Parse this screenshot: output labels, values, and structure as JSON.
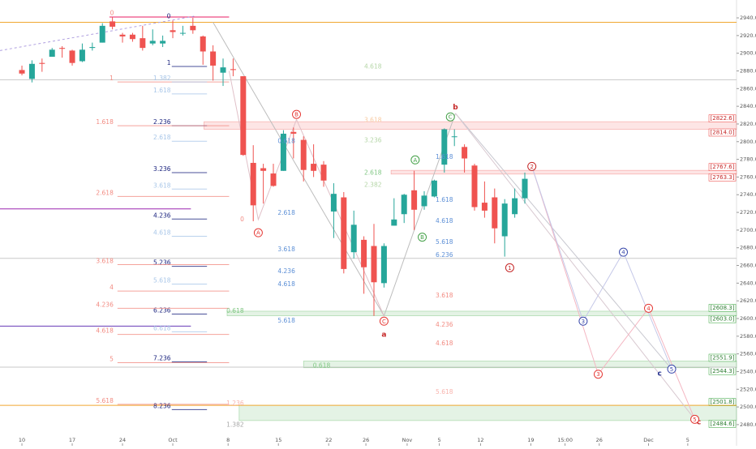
{
  "chart_data": {
    "type": "candlestick",
    "up_color": "#26a69a",
    "down_color": "#ef5350",
    "open": [
      2881,
      2871,
      2889,
      2896,
      2906,
      2903,
      2891,
      2906,
      2912,
      2936,
      2921,
      2921,
      2917,
      2911,
      2911,
      2926,
      2923,
      2931,
      2919,
      2902,
      2878,
      2882,
      2874,
      2776,
      2770,
      2764,
      2767,
      2811,
      2802,
      2775,
      2774,
      2721,
      2737,
      2675,
      2689,
      2682,
      2640,
      2705,
      2718,
      2745,
      2727,
      2738,
      2774,
      2806,
      2794,
      2773,
      2731,
      2737,
      2693,
      2718,
      2736
    ],
    "high": [
      2886,
      2892,
      2894,
      2906,
      2908,
      2904,
      2911,
      2912,
      2934,
      2941,
      2923,
      2923,
      2931,
      2927,
      2920,
      2937,
      2931,
      2940,
      2920,
      2909,
      2894,
      2894,
      2874,
      2796,
      2775,
      2775,
      2813,
      2816,
      2806,
      2797,
      2778,
      2753,
      2743,
      2722,
      2693,
      2707,
      2685,
      2736,
      2741,
      2767,
      2744,
      2757,
      2815,
      2814,
      2797,
      2775,
      2755,
      2747,
      2735,
      2747,
      2765
    ],
    "low": [
      2875,
      2867,
      2879,
      2896,
      2895,
      2886,
      2890,
      2903,
      2912,
      2927,
      2912,
      2913,
      2903,
      2909,
      2907,
      2917,
      2920,
      2922,
      2887,
      2869,
      2863,
      2874,
      2784,
      2710,
      2730,
      2749,
      2767,
      2781,
      2755,
      2760,
      2749,
      2691,
      2651,
      2668,
      2628,
      2603,
      2635,
      2705,
      2708,
      2700,
      2723,
      2737,
      2765,
      2795,
      2765,
      2722,
      2714,
      2685,
      2670,
      2714,
      2730
    ],
    "close": [
      2877,
      2888,
      2888,
      2904,
      2905,
      2889,
      2904,
      2907,
      2931,
      2930,
      2919,
      2916,
      2906,
      2914,
      2914,
      2924,
      2923,
      2926,
      2902,
      2886,
      2884,
      2881,
      2785,
      2728,
      2767,
      2750,
      2809,
      2809,
      2768,
      2767,
      2756,
      2741,
      2656,
      2706,
      2658,
      2641,
      2682,
      2712,
      2740,
      2723,
      2739,
      2756,
      2814,
      2806,
      2781,
      2726,
      2722,
      2702,
      2730,
      2736,
      2758
    ],
    "xlim": [
      -2.18,
      71.05
    ],
    "xticks": [
      {
        "value": 0,
        "label": "10"
      },
      {
        "value": 5,
        "label": "17"
      },
      {
        "value": 10,
        "label": "24"
      },
      {
        "value": 15,
        "label": "Oct"
      },
      {
        "value": 20.5,
        "label": "8"
      },
      {
        "value": 25.5,
        "label": "15"
      },
      {
        "value": 30.5,
        "label": "22"
      },
      {
        "value": 34.2,
        "label": "26"
      },
      {
        "value": 38.3,
        "label": "Nov"
      },
      {
        "value": 41.5,
        "label": "5"
      },
      {
        "value": 45.6,
        "label": "12"
      },
      {
        "value": 50.6,
        "label": "19"
      },
      {
        "value": 54,
        "label": "15:00"
      },
      {
        "value": 57.4,
        "label": "26"
      },
      {
        "value": 62.3,
        "label": "Dec"
      },
      {
        "value": 66.2,
        "label": "5"
      }
    ],
    "ylim": [
      2456.1,
      2960.2
    ],
    "yticks": [
      {
        "value": 2480,
        "label": "2480.0"
      },
      {
        "value": 2500,
        "label": "2500.0"
      },
      {
        "value": 2520,
        "label": "2520.0"
      },
      {
        "value": 2540,
        "label": "2540.0"
      },
      {
        "value": 2560,
        "label": "2560.0"
      },
      {
        "value": 2580,
        "label": "2580.0"
      },
      {
        "value": 2600,
        "label": "2600.0"
      },
      {
        "value": 2620,
        "label": "2620.0"
      },
      {
        "value": 2640,
        "label": "2640.0"
      },
      {
        "value": 2660,
        "label": "2660.0"
      },
      {
        "value": 2680,
        "label": "2680.0"
      },
      {
        "value": 2700,
        "label": "2700.0"
      },
      {
        "value": 2720,
        "label": "2720.0"
      },
      {
        "value": 2740,
        "label": "2740.0"
      },
      {
        "value": 2760,
        "label": "2760.0"
      },
      {
        "value": 2780,
        "label": "2780.0"
      },
      {
        "value": 2800,
        "label": "2800.0"
      },
      {
        "value": 2820,
        "label": "2820.0"
      },
      {
        "value": 2840,
        "label": "2840.0"
      },
      {
        "value": 2860,
        "label": "2860.0"
      },
      {
        "value": 2880,
        "label": "2880.0"
      },
      {
        "value": 2900,
        "label": "2900.0"
      },
      {
        "value": 2920,
        "label": "2920.0"
      },
      {
        "value": 2940,
        "label": "2940.0"
      }
    ],
    "zones": [
      {
        "x0": 18.1,
        "color": "#ef5350",
        "top": {
          "value": 2822.6,
          "label": "[2822.6]"
        },
        "bottom": {
          "value": 2814.0,
          "label": "[2814.0]"
        }
      },
      {
        "x0": 36.7,
        "color": "#ef5350",
        "top": {
          "value": 2767.6,
          "label": "[2767.6]"
        },
        "bottom": {
          "value": 2763.3,
          "label": "[2763.3]"
        }
      },
      {
        "x0": 20.4,
        "color": "#4caf50",
        "top": {
          "value": 2608.3,
          "label": "[2608.3]"
        },
        "bottom": {
          "value": 2603.0,
          "label": "[2603.0]"
        }
      },
      {
        "x0": 28,
        "color": "#4caf50",
        "top": {
          "value": 2551.9,
          "label": "[2551.9]"
        },
        "bottom": {
          "value": 2544.3,
          "label": "[2544.3]"
        }
      },
      {
        "x0": 21.6,
        "color": "#4caf50",
        "top": {
          "value": 2501.8,
          "label": "[2501.8]"
        },
        "bottom": {
          "value": 2484.6,
          "label": "[2484.6]"
        }
      }
    ],
    "levels": [
      {
        "price": 2935,
        "color": "#f0a830"
      },
      {
        "price": 2870,
        "color": "#c8c8c8"
      },
      {
        "price": 2668,
        "color": "#c8c8c8"
      },
      {
        "price": 2545,
        "color": "#c8c8c8"
      },
      {
        "price": 2501.8,
        "color": "#f0a830"
      },
      {
        "price": 2724,
        "x0": -2.18,
        "x1": 16.8,
        "color": "#9c27b0"
      },
      {
        "price": 2591.4,
        "x0": -2.18,
        "x1": 16.8,
        "color": "#673ab7"
      },
      {
        "price": 2941,
        "x0": 8.7,
        "x1": 20.6,
        "color": "#e91e63"
      }
    ],
    "ladders": [
      {
        "color": "#1a237e",
        "x0": 14.9,
        "x1": 18.4,
        "text_x": 14.8,
        "levels": [
          {
            "label": "1",
            "price": 2885
          },
          {
            "label": "2.236",
            "price": 2818
          },
          {
            "label": "3.236",
            "price": 2765
          },
          {
            "label": "4.236",
            "price": 2712.5
          },
          {
            "label": "5.236",
            "price": 2659
          },
          {
            "label": "6.236",
            "price": 2605
          },
          {
            "label": "7.236",
            "price": 2551
          },
          {
            "label": "8.236",
            "price": 2497
          }
        ]
      },
      {
        "color": "#f28b82",
        "x0": 9.5,
        "x1": 20.6,
        "text_x": 9.1,
        "levels": [
          {
            "label": "1",
            "price": 2867.5
          },
          {
            "label": "1.618",
            "price": 2818
          },
          {
            "label": "2.618",
            "price": 2738
          },
          {
            "label": "3.618",
            "price": 2661
          },
          {
            "label": "4",
            "price": 2631
          },
          {
            "label": "4.236",
            "price": 2611.6
          },
          {
            "label": "4.618",
            "price": 2582
          },
          {
            "label": "5",
            "price": 2550
          },
          {
            "label": "5.618",
            "price": 2503
          }
        ]
      },
      {
        "color": "#a8c6e8",
        "x0": 14.9,
        "x1": 18.4,
        "text_x": 14.8,
        "levels": [
          {
            "label": "1.382",
            "price": 2867.5
          },
          {
            "label": "1.618",
            "price": 2854
          },
          {
            "label": "2.618",
            "price": 2800.5
          },
          {
            "label": "3.618",
            "price": 2746.4
          },
          {
            "label": "4.618",
            "price": 2693
          },
          {
            "label": "5.618",
            "price": 2639
          },
          {
            "label": "6.618",
            "price": 2585
          }
        ]
      }
    ],
    "lines": [
      {
        "color": "#b0a0e0",
        "dash": true,
        "points": [
          [
            -2.18,
            2903
          ],
          [
            17.2,
            2942
          ]
        ]
      },
      {
        "color": "#bdbdbd",
        "points": [
          [
            19,
            2935
          ],
          [
            36,
            2603
          ],
          [
            43.1,
            2832
          ]
        ]
      },
      {
        "color": "#e0c0c8",
        "points": [
          [
            20.6,
            2880
          ],
          [
            23.5,
            2712
          ],
          [
            27.3,
            2825
          ],
          [
            36,
            2603
          ]
        ]
      },
      {
        "color": "#c8c8d0",
        "points": [
          [
            43.1,
            2832
          ],
          [
            64.6,
            2542.8
          ]
        ]
      },
      {
        "color": "#d8c8d0",
        "points": [
          [
            43.1,
            2832
          ],
          [
            66.9,
            2486
          ]
        ]
      },
      {
        "color": "#f4b6c2",
        "points": [
          [
            50.7,
            2772
          ],
          [
            57.3,
            2537
          ],
          [
            62.3,
            2611.6
          ],
          [
            66.9,
            2486
          ]
        ]
      },
      {
        "color": "#c5c8e8",
        "points": [
          [
            50.7,
            2772
          ],
          [
            55.8,
            2597
          ],
          [
            59.8,
            2675
          ],
          [
            64.6,
            2542.8
          ]
        ]
      }
    ],
    "annotations": [
      {
        "text": "0",
        "x": 8.95,
        "y": 2945.5,
        "color": "#f28b82"
      },
      {
        "text": "0",
        "x": 14.6,
        "y": 2942,
        "color": "#1a237e"
      },
      {
        "text": "0",
        "x": 21.9,
        "y": 2712.5,
        "color": "#f28b82"
      },
      {
        "text": "4.618",
        "x": 34.9,
        "y": 2885,
        "color": "#b5d6a7"
      },
      {
        "text": "3.618",
        "x": 34.9,
        "y": 2824.4,
        "color": "#f8c9a0"
      },
      {
        "text": "3.236",
        "x": 34.9,
        "y": 2801.5,
        "color": "#b5d6a7"
      },
      {
        "text": "2.618",
        "x": 34.9,
        "y": 2764.8,
        "color": "#81c784"
      },
      {
        "text": "2.382",
        "x": 34.9,
        "y": 2751,
        "color": "#b5d6a7"
      },
      {
        "text": "1.618",
        "x": 42,
        "y": 2783,
        "color": "#5c8fd6"
      },
      {
        "text": "1.618",
        "x": 42,
        "y": 2734.5,
        "color": "#5c8fd6"
      },
      {
        "text": "4.618",
        "x": 42,
        "y": 2710.6,
        "color": "#5c8fd6"
      },
      {
        "text": "5.618",
        "x": 42,
        "y": 2686.8,
        "color": "#5c8fd6"
      },
      {
        "text": "6.236",
        "x": 42,
        "y": 2672,
        "color": "#5c8fd6"
      },
      {
        "text": "3.618",
        "x": 42,
        "y": 2626,
        "color": "#f28b82"
      },
      {
        "text": "4.236",
        "x": 42,
        "y": 2593,
        "color": "#f28b82"
      },
      {
        "text": "4.618",
        "x": 42,
        "y": 2572,
        "color": "#f28b82"
      },
      {
        "text": "5.618",
        "x": 42,
        "y": 2517,
        "color": "#f8b4ae"
      },
      {
        "text": "0.618",
        "x": 26.3,
        "y": 2800.5,
        "color": "#5c8fd6"
      },
      {
        "text": "2.618",
        "x": 26.3,
        "y": 2719.8,
        "color": "#5c8fd6"
      },
      {
        "text": "3.618",
        "x": 26.3,
        "y": 2678.5,
        "color": "#5c8fd6"
      },
      {
        "text": "4.236",
        "x": 26.3,
        "y": 2653.8,
        "color": "#5c8fd6"
      },
      {
        "text": "4.618",
        "x": 26.3,
        "y": 2639,
        "color": "#5c8fd6"
      },
      {
        "text": "5.618",
        "x": 26.3,
        "y": 2597.8,
        "color": "#5c8fd6"
      },
      {
        "text": "0.618",
        "x": 21.2,
        "y": 2608.8,
        "color": "#81c784"
      },
      {
        "text": "0.618",
        "x": 29.8,
        "y": 2547,
        "color": "#81c784"
      },
      {
        "text": "1.236",
        "x": 21.2,
        "y": 2504,
        "color": "#f8b4ae"
      },
      {
        "text": "1.382",
        "x": 21.2,
        "y": 2480,
        "color": "#a8a8a8"
      },
      {
        "text": "A",
        "x": 23.5,
        "y": 2697,
        "color": "#e53935",
        "circle": true
      },
      {
        "text": "B",
        "x": 27.3,
        "y": 2830.8,
        "color": "#e53935",
        "circle": true
      },
      {
        "text": "C",
        "x": 36,
        "y": 2597,
        "color": "#e53935",
        "circle": true
      },
      {
        "text": "a",
        "x": 36,
        "y": 2582,
        "color": "#c62828",
        "bold": true
      },
      {
        "text": "b",
        "x": 43.1,
        "y": 2839,
        "color": "#c62828",
        "bold": true
      },
      {
        "text": "c",
        "x": 67.3,
        "y": 2483,
        "color": "#c62828",
        "bold": true
      },
      {
        "text": "A",
        "x": 39.1,
        "y": 2779.4,
        "color": "#43a047",
        "circle": true
      },
      {
        "text": "B",
        "x": 39.8,
        "y": 2692,
        "color": "#43a047",
        "circle": true
      },
      {
        "text": "C",
        "x": 42.6,
        "y": 2828,
        "color": "#43a047",
        "circle": true
      },
      {
        "text": "1",
        "x": 48.5,
        "y": 2657.4,
        "color": "#c62828",
        "circle": true
      },
      {
        "text": "2",
        "x": 50.7,
        "y": 2772,
        "color": "#c62828",
        "circle": true
      },
      {
        "text": "3",
        "x": 57.3,
        "y": 2537,
        "color": "#e53935",
        "circle": true
      },
      {
        "text": "4",
        "x": 62.3,
        "y": 2611.6,
        "color": "#e53935",
        "circle": true
      },
      {
        "text": "5",
        "x": 66.9,
        "y": 2486,
        "color": "#e53935",
        "circle": true
      },
      {
        "text": "3",
        "x": 55.8,
        "y": 2597,
        "color": "#3949ab",
        "circle": true
      },
      {
        "text": "4",
        "x": 59.8,
        "y": 2675,
        "color": "#3949ab",
        "circle": true
      },
      {
        "text": "5",
        "x": 64.6,
        "y": 2542.8,
        "color": "#3949ab",
        "circle": true
      },
      {
        "text": "c",
        "x": 63.4,
        "y": 2538,
        "color": "#283593",
        "bold": true
      }
    ]
  }
}
